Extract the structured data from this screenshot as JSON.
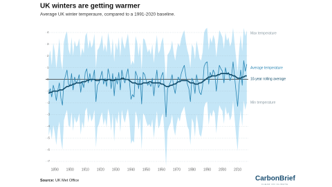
{
  "chart_data": {
    "type": "area-line",
    "title": "UK winters are getting warmer",
    "subtitle": "Average UK winter temperaure, compared to a 1991-2020 baseline.",
    "source_label": "Source:",
    "source": "UK Met Office",
    "brand": "CarbonBrief",
    "brand_tagline": "CLEAR ON CLIMATE",
    "x": [
      1886,
      1887,
      1888,
      1889,
      1890,
      1891,
      1892,
      1893,
      1894,
      1895,
      1896,
      1897,
      1898,
      1899,
      1900,
      1901,
      1902,
      1903,
      1904,
      1905,
      1906,
      1907,
      1908,
      1909,
      1910,
      1911,
      1912,
      1913,
      1914,
      1915,
      1916,
      1917,
      1918,
      1919,
      1920,
      1921,
      1922,
      1923,
      1924,
      1925,
      1926,
      1927,
      1928,
      1929,
      1930,
      1931,
      1932,
      1933,
      1934,
      1935,
      1936,
      1937,
      1938,
      1939,
      1940,
      1941,
      1942,
      1943,
      1944,
      1945,
      1946,
      1947,
      1948,
      1949,
      1950,
      1951,
      1952,
      1953,
      1954,
      1955,
      1956,
      1957,
      1958,
      1959,
      1960,
      1961,
      1962,
      1963,
      1964,
      1965,
      1966,
      1967,
      1968,
      1969,
      1970,
      1971,
      1972,
      1973,
      1974,
      1975,
      1976,
      1977,
      1978,
      1979,
      1980,
      1981,
      1982,
      1983,
      1984,
      1985,
      1986,
      1987,
      1988,
      1989,
      1990,
      1991,
      1992,
      1993,
      1994,
      1995,
      1996,
      1997,
      1998,
      1999,
      2000,
      2001,
      2002,
      2003,
      2004,
      2005,
      2006,
      2007,
      2008,
      2009,
      2010,
      2011,
      2012,
      2013,
      2014,
      2015,
      2016
    ],
    "xlim": [
      1884,
      2017
    ],
    "xticks": [
      1890,
      1900,
      1910,
      1920,
      1930,
      1940,
      1950,
      1960,
      1970,
      1980,
      1990,
      2000,
      2010
    ],
    "ylim": [
      -7.5,
      4.5
    ],
    "yticks": [
      4,
      3,
      2,
      1,
      0,
      -1,
      -2,
      -3,
      -4,
      -5,
      -6,
      -7
    ],
    "grid": true,
    "series": [
      {
        "name": "Max temperature",
        "kind": "area",
        "color": "#c4e6f7",
        "label_color": "#8a9aa3",
        "values": [
          1.8,
          2.5,
          1.2,
          3.1,
          2.4,
          0.9,
          2.2,
          3.5,
          1.6,
          0.8,
          3.2,
          3.8,
          4.1,
          2.6,
          2.1,
          3.6,
          2.0,
          3.3,
          2.8,
          2.9,
          3.5,
          1.9,
          2.7,
          2.2,
          3.7,
          4.0,
          2.6,
          3.4,
          2.7,
          3.0,
          3.9,
          1.0,
          2.5,
          2.7,
          3.1,
          3.8,
          2.4,
          3.0,
          2.3,
          4.0,
          3.2,
          2.0,
          3.5,
          1.5,
          3.1,
          2.5,
          3.6,
          1.9,
          3.7,
          3.0,
          2.6,
          3.3,
          3.9,
          2.7,
          1.2,
          1.6,
          1.3,
          3.7,
          3.2,
          2.0,
          3.1,
          0.8,
          3.5,
          3.4,
          2.9,
          2.3,
          2.6,
          2.1,
          3.0,
          1.4,
          2.7,
          3.8,
          2.2,
          2.5,
          3.2,
          3.6,
          2.0,
          -0.2,
          2.1,
          2.3,
          2.6,
          3.3,
          2.3,
          1.6,
          2.5,
          3.1,
          2.8,
          3.5,
          3.9,
          4.2,
          3.2,
          2.5,
          2.0,
          1.0,
          3.0,
          2.7,
          1.7,
          3.3,
          2.6,
          1.8,
          1.6,
          2.3,
          4.0,
          4.3,
          4.4,
          2.5,
          3.6,
          3.1,
          3.8,
          3.4,
          1.9,
          3.1,
          4.2,
          3.9,
          3.6,
          2.6,
          4.0,
          3.3,
          3.6,
          2.8,
          3.2,
          4.4,
          3.1,
          1.8,
          0.6,
          2.5,
          3.8,
          2.4,
          4.4,
          3.7,
          4.2
        ]
      },
      {
        "name": "Min temperature",
        "kind": "area",
        "color": "#c4e6f7",
        "label_color": "#8a9aa3",
        "values": [
          -4.8,
          -4.2,
          -5.1,
          -3.9,
          -4.6,
          -5.6,
          -4.3,
          -3.6,
          -5.2,
          -6.0,
          -3.5,
          -3.0,
          -2.6,
          -3.9,
          -4.1,
          -2.8,
          -4.4,
          -3.2,
          -3.7,
          -3.5,
          -2.9,
          -4.7,
          -3.6,
          -4.2,
          -2.7,
          -2.4,
          -3.7,
          -2.9,
          -3.6,
          -3.3,
          -2.6,
          -5.8,
          -4.1,
          -3.8,
          -3.2,
          -2.8,
          -3.9,
          -3.3,
          -4.1,
          -2.5,
          -3.1,
          -4.4,
          -2.9,
          -5.3,
          -3.2,
          -3.8,
          -2.7,
          -4.5,
          -2.6,
          -3.3,
          -3.7,
          -3.0,
          -2.5,
          -3.6,
          -5.5,
          -5.2,
          -5.4,
          -2.7,
          -3.2,
          -4.3,
          -3.3,
          -6.0,
          -2.9,
          -3.1,
          -3.6,
          -4.0,
          -3.8,
          -4.1,
          -3.4,
          -5.0,
          -3.8,
          -2.7,
          -4.2,
          -3.9,
          -3.2,
          -2.9,
          -4.6,
          -7.4,
          -4.4,
          -4.0,
          -3.7,
          -3.0,
          -4.2,
          -4.8,
          -3.8,
          -3.2,
          -3.6,
          -2.9,
          -2.6,
          -2.3,
          -3.2,
          -4.0,
          -4.3,
          -5.6,
          -3.3,
          -3.7,
          -4.9,
          -3.0,
          -3.8,
          -4.7,
          -4.9,
          -4.1,
          -2.4,
          -2.0,
          -1.9,
          -3.9,
          -2.8,
          -3.2,
          -2.6,
          -2.9,
          -4.6,
          -3.2,
          -2.2,
          -2.5,
          -2.7,
          -3.8,
          -2.3,
          -3.0,
          -2.8,
          -3.5,
          -3.1,
          -1.8,
          -3.3,
          -4.8,
          -6.1,
          -3.9,
          -2.6,
          -4.0,
          -1.8,
          -2.6,
          -2.0
        ]
      },
      {
        "name": "Average temperature",
        "kind": "line",
        "color": "#2584b3",
        "label_color": "#2584b3",
        "values": [
          -1.2,
          -0.8,
          -1.5,
          -0.5,
          -1.0,
          -1.8,
          -0.9,
          -0.3,
          -1.6,
          -2.2,
          -0.2,
          0.3,
          0.8,
          -0.4,
          -0.6,
          0.5,
          -0.9,
          0.2,
          -0.3,
          -0.1,
          0.4,
          -1.1,
          -0.2,
          -0.7,
          0.6,
          0.9,
          -0.3,
          0.5,
          -0.2,
          0.1,
          0.8,
          -1.9,
          -0.5,
          -0.3,
          0.2,
          0.7,
          -0.4,
          0.1,
          -0.6,
          0.9,
          0.3,
          -0.8,
          0.5,
          -1.4,
          0.2,
          -0.4,
          0.6,
          -0.9,
          0.8,
          0.1,
          -0.3,
          0.4,
          0.9,
          -0.2,
          -1.7,
          -1.3,
          -1.5,
          0.7,
          0.3,
          -0.8,
          0.2,
          -2.1,
          0.6,
          0.4,
          -0.1,
          -0.5,
          -0.3,
          -0.6,
          0.1,
          -1.4,
          -0.2,
          0.8,
          -0.7,
          -0.4,
          0.3,
          0.6,
          -0.9,
          -3.2,
          -0.8,
          -0.5,
          -0.2,
          0.4,
          -0.6,
          -1.2,
          -0.3,
          0.2,
          -0.1,
          0.5,
          0.9,
          1.2,
          0.3,
          -0.4,
          -0.8,
          -1.9,
          0.1,
          -0.2,
          -1.2,
          0.4,
          -0.3,
          -1.1,
          -1.3,
          -0.6,
          1.1,
          1.4,
          1.5,
          -0.4,
          0.6,
          0.2,
          0.8,
          0.5,
          -1.0,
          0.2,
          1.2,
          0.9,
          0.7,
          -0.3,
          1.0,
          0.4,
          0.6,
          -0.1,
          0.3,
          1.5,
          0.2,
          -1.1,
          -2.3,
          -0.4,
          0.8,
          -0.5,
          1.6,
          0.7,
          1.3
        ]
      },
      {
        "name": "10-year rolling average",
        "kind": "line",
        "color": "#0f4a68",
        "label_color": "#0f4a68",
        "values": [
          -1.2,
          -1.1,
          -1.1,
          -1.0,
          -1.0,
          -1.0,
          -1.0,
          -0.9,
          -0.9,
          -0.9,
          -0.8,
          -0.7,
          -0.6,
          -0.6,
          -0.5,
          -0.5,
          -0.4,
          -0.4,
          -0.3,
          -0.3,
          -0.3,
          -0.3,
          -0.2,
          -0.2,
          -0.2,
          -0.1,
          -0.1,
          0.0,
          0.0,
          0.0,
          0.0,
          -0.1,
          -0.1,
          -0.1,
          0.0,
          0.0,
          0.0,
          -0.1,
          -0.1,
          0.0,
          0.0,
          -0.1,
          -0.1,
          -0.1,
          0.0,
          0.0,
          0.0,
          0.0,
          0.1,
          0.1,
          0.0,
          0.0,
          0.0,
          -0.1,
          -0.2,
          -0.3,
          -0.3,
          -0.3,
          -0.4,
          -0.4,
          -0.4,
          -0.4,
          -0.3,
          -0.3,
          -0.3,
          -0.3,
          -0.2,
          -0.2,
          -0.3,
          -0.3,
          -0.3,
          -0.3,
          -0.3,
          -0.3,
          -0.4,
          -0.4,
          -0.5,
          -0.6,
          -0.6,
          -0.6,
          -0.5,
          -0.5,
          -0.4,
          -0.4,
          -0.3,
          -0.2,
          -0.2,
          -0.1,
          -0.1,
          -0.1,
          -0.1,
          -0.1,
          -0.2,
          -0.3,
          -0.3,
          -0.3,
          -0.4,
          -0.4,
          -0.4,
          -0.3,
          -0.3,
          -0.2,
          -0.1,
          0.0,
          0.1,
          0.2,
          0.2,
          0.3,
          0.3,
          0.3,
          0.3,
          0.4,
          0.4,
          0.5,
          0.5,
          0.5,
          0.5,
          0.5,
          0.5,
          0.4,
          0.4,
          0.3,
          0.3,
          0.2,
          0.1,
          0.1,
          0.1,
          0.2,
          0.2,
          0.3,
          0.3
        ]
      }
    ]
  }
}
